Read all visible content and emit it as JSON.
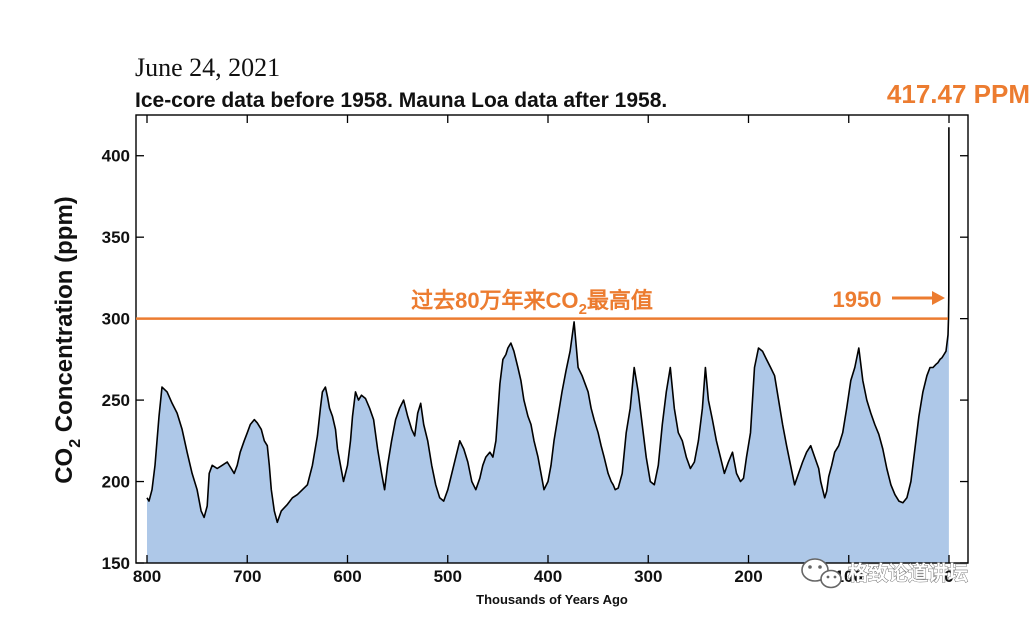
{
  "chart_data": {
    "type": "area",
    "date": "June 24, 2021",
    "title": "Ice-core data before 1958. Mauna Loa data after 1958.",
    "xlabel": "Thousands of Years Ago",
    "ylabel_main": "CO",
    "ylabel_sub": "2",
    "ylabel_rest": " Concentration (ppm)",
    "xlim": [
      800,
      0
    ],
    "ylim": [
      150,
      425
    ],
    "x_ticks": [
      "800",
      "700",
      "600",
      "500",
      "400",
      "300",
      "200",
      "100",
      "0"
    ],
    "y_ticks": [
      "150",
      "200",
      "250",
      "300",
      "350",
      "400"
    ],
    "reference_line": {
      "value": 300,
      "label_main": "过去80万年来CO",
      "label_sub": "2",
      "label_rest": "最高值",
      "color": "#ec7c30"
    },
    "annotation_year": "1950",
    "peak_label": "417.47 PPM",
    "fill_color": "#aec8e8",
    "line_color": "#000000",
    "series": [
      {
        "name": "CO2",
        "x": [
          800,
          798,
          795,
          792,
          790,
          788,
          785,
          780,
          775,
          770,
          765,
          760,
          755,
          750,
          746,
          743,
          740,
          738,
          735,
          730,
          725,
          720,
          716,
          713,
          710,
          707,
          703,
          700,
          697,
          693,
          690,
          686,
          683,
          680,
          678,
          676,
          673,
          670,
          666,
          660,
          655,
          650,
          645,
          640,
          635,
          630,
          627,
          625,
          622,
          620,
          618,
          615,
          612,
          610,
          607,
          604,
          600,
          597,
          595,
          592,
          589,
          586,
          582,
          578,
          574,
          570,
          566,
          563,
          560,
          556,
          552,
          548,
          544,
          540,
          536,
          533,
          530,
          527,
          524,
          520,
          516,
          512,
          508,
          504,
          500,
          496,
          492,
          488,
          484,
          480,
          476,
          472,
          468,
          465,
          462,
          458,
          455,
          452,
          448,
          445,
          442,
          440,
          437,
          434,
          430,
          427,
          424,
          420,
          417,
          414,
          410,
          407,
          404,
          400,
          397,
          394,
          390,
          386,
          382,
          378,
          374,
          370,
          366,
          363,
          360,
          357,
          354,
          350,
          347,
          344,
          340,
          337,
          335,
          333,
          330,
          326,
          322,
          318,
          314,
          310,
          306,
          302,
          298,
          294,
          290,
          286,
          282,
          278,
          274,
          270,
          266,
          262,
          258,
          254,
          250,
          246,
          243,
          240,
          236,
          232,
          228,
          224,
          220,
          216,
          212,
          208,
          205,
          202,
          198,
          194,
          190,
          186,
          182,
          178,
          174,
          170,
          166,
          162,
          158,
          154,
          150,
          146,
          142,
          138,
          134,
          130,
          128,
          126,
          124,
          122,
          120,
          117,
          114,
          110,
          106,
          102,
          98,
          94,
          90,
          86,
          82,
          78,
          74,
          70,
          66,
          62,
          58,
          54,
          50,
          46,
          42,
          38,
          34,
          30,
          26,
          22,
          19,
          16,
          13,
          11,
          9,
          7,
          5,
          3,
          2,
          1,
          0.5,
          0.2,
          0.1,
          0.07
        ],
        "values": [
          190,
          188,
          195,
          210,
          225,
          240,
          258,
          255,
          248,
          242,
          232,
          218,
          205,
          195,
          182,
          178,
          185,
          205,
          210,
          208,
          210,
          212,
          208,
          205,
          210,
          218,
          225,
          230,
          235,
          238,
          236,
          232,
          225,
          222,
          210,
          195,
          182,
          175,
          182,
          186,
          190,
          192,
          195,
          198,
          210,
          228,
          245,
          255,
          258,
          252,
          245,
          240,
          232,
          220,
          210,
          200,
          210,
          225,
          240,
          255,
          250,
          253,
          251,
          245,
          238,
          220,
          205,
          195,
          210,
          225,
          238,
          245,
          250,
          240,
          232,
          228,
          242,
          248,
          235,
          225,
          210,
          198,
          190,
          188,
          195,
          205,
          215,
          225,
          220,
          212,
          200,
          195,
          202,
          210,
          215,
          218,
          215,
          225,
          260,
          275,
          278,
          282,
          285,
          280,
          270,
          262,
          250,
          240,
          235,
          225,
          215,
          205,
          195,
          200,
          210,
          225,
          240,
          255,
          268,
          280,
          298,
          270,
          265,
          260,
          255,
          245,
          238,
          230,
          222,
          215,
          205,
          200,
          198,
          195,
          196,
          205,
          230,
          245,
          270,
          255,
          235,
          215,
          200,
          198,
          210,
          235,
          255,
          270,
          245,
          230,
          225,
          215,
          208,
          212,
          225,
          245,
          270,
          250,
          238,
          225,
          215,
          205,
          212,
          218,
          205,
          200,
          202,
          215,
          230,
          270,
          282,
          280,
          275,
          270,
          265,
          250,
          235,
          222,
          210,
          198,
          205,
          212,
          218,
          222,
          215,
          208,
          200,
          195,
          190,
          194,
          203,
          210,
          218,
          222,
          230,
          245,
          262,
          270,
          282,
          262,
          250,
          242,
          235,
          229,
          220,
          208,
          198,
          192,
          188,
          187,
          190,
          200,
          220,
          240,
          255,
          265,
          270,
          270,
          272,
          273,
          275,
          276,
          278,
          280,
          285,
          290,
          300,
          315,
          360,
          417.47
        ]
      }
    ]
  },
  "watermark": "格致论道讲坛"
}
